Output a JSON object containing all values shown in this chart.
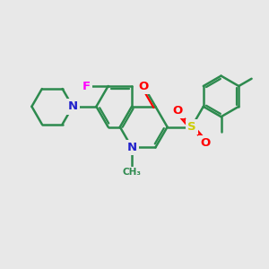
{
  "bg_color": "#e8e8e8",
  "bond_color": "#2d8a4e",
  "bond_width": 1.8,
  "F_color": "#ff00ff",
  "O_color": "#ff0000",
  "S_color": "#cccc00",
  "N_color": "#2222cc",
  "fig_width": 3.0,
  "fig_height": 3.0,
  "dpi": 100,
  "xlim": [
    0,
    10
  ],
  "ylim": [
    0,
    10
  ]
}
